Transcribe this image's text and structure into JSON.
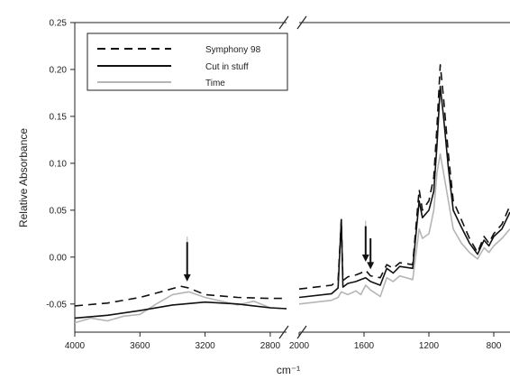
{
  "chart_data": {
    "type": "line",
    "title": "",
    "xlabel": "cm⁻¹",
    "ylabel": "Relative Absorbance",
    "y_range": [
      -0.08,
      0.25
    ],
    "y_ticks": [
      "-0.05",
      "0.00",
      "0.05",
      "0.10",
      "0.15",
      "0.20",
      "0.25"
    ],
    "x_axis_broken": true,
    "x_left_range": [
      4000,
      2700
    ],
    "x_right_range": [
      2000,
      700
    ],
    "x_ticks_left": [
      "4000",
      "3600",
      "3200",
      "2800"
    ],
    "x_ticks_right": [
      "2000",
      "1600",
      "1200",
      "800"
    ],
    "grid": false,
    "legend_position": "top-left",
    "annotations": [
      "↓",
      "↓",
      "↓"
    ],
    "series": [
      {
        "name": "Symphony 98",
        "style": "dashed",
        "color": "#111111",
        "left": [
          [
            4000,
            -0.052
          ],
          [
            3800,
            -0.049
          ],
          [
            3600,
            -0.043
          ],
          [
            3450,
            -0.036
          ],
          [
            3350,
            -0.031
          ],
          [
            3300,
            -0.033
          ],
          [
            3200,
            -0.04
          ],
          [
            3000,
            -0.043
          ],
          [
            2800,
            -0.044
          ],
          [
            2700,
            -0.044
          ]
        ],
        "right": [
          [
            2000,
            -0.034
          ],
          [
            1800,
            -0.03
          ],
          [
            1760,
            -0.025
          ],
          [
            1740,
            0.04
          ],
          [
            1730,
            -0.025
          ],
          [
            1700,
            -0.021
          ],
          [
            1650,
            -0.019
          ],
          [
            1620,
            -0.017
          ],
          [
            1590,
            -0.014
          ],
          [
            1560,
            -0.02
          ],
          [
            1500,
            -0.022
          ],
          [
            1460,
            -0.008
          ],
          [
            1420,
            -0.012
          ],
          [
            1380,
            -0.006
          ],
          [
            1300,
            -0.008
          ],
          [
            1260,
            0.072
          ],
          [
            1240,
            0.05
          ],
          [
            1200,
            0.06
          ],
          [
            1170,
            0.085
          ],
          [
            1150,
            0.14
          ],
          [
            1130,
            0.205
          ],
          [
            1110,
            0.17
          ],
          [
            1080,
            0.11
          ],
          [
            1050,
            0.06
          ],
          [
            1000,
            0.04
          ],
          [
            950,
            0.02
          ],
          [
            900,
            0.005
          ],
          [
            860,
            0.022
          ],
          [
            830,
            0.015
          ],
          [
            800,
            0.025
          ],
          [
            750,
            0.035
          ],
          [
            700,
            0.055
          ]
        ]
      },
      {
        "name": "Cut in stuff",
        "style": "solid",
        "color": "#111111",
        "left": [
          [
            4000,
            -0.065
          ],
          [
            3800,
            -0.062
          ],
          [
            3600,
            -0.057
          ],
          [
            3400,
            -0.051
          ],
          [
            3200,
            -0.048
          ],
          [
            3000,
            -0.05
          ],
          [
            2900,
            -0.052
          ],
          [
            2800,
            -0.054
          ],
          [
            2700,
            -0.055
          ]
        ],
        "right": [
          [
            2000,
            -0.043
          ],
          [
            1800,
            -0.039
          ],
          [
            1760,
            -0.033
          ],
          [
            1740,
            0.04
          ],
          [
            1730,
            -0.032
          ],
          [
            1700,
            -0.028
          ],
          [
            1650,
            -0.026
          ],
          [
            1620,
            -0.024
          ],
          [
            1590,
            -0.022
          ],
          [
            1560,
            -0.026
          ],
          [
            1500,
            -0.03
          ],
          [
            1460,
            -0.012
          ],
          [
            1420,
            -0.017
          ],
          [
            1380,
            -0.01
          ],
          [
            1300,
            -0.012
          ],
          [
            1260,
            0.06
          ],
          [
            1240,
            0.042
          ],
          [
            1200,
            0.05
          ],
          [
            1170,
            0.07
          ],
          [
            1150,
            0.12
          ],
          [
            1130,
            0.182
          ],
          [
            1110,
            0.15
          ],
          [
            1080,
            0.095
          ],
          [
            1050,
            0.05
          ],
          [
            1000,
            0.032
          ],
          [
            950,
            0.015
          ],
          [
            900,
            0.003
          ],
          [
            860,
            0.018
          ],
          [
            830,
            0.012
          ],
          [
            800,
            0.022
          ],
          [
            750,
            0.03
          ],
          [
            700,
            0.048
          ]
        ]
      },
      {
        "name": "Time",
        "style": "solid",
        "color": "#b5b5b5",
        "left": [
          [
            4000,
            -0.07
          ],
          [
            3900,
            -0.065
          ],
          [
            3800,
            -0.068
          ],
          [
            3700,
            -0.063
          ],
          [
            3600,
            -0.061
          ],
          [
            3500,
            -0.05
          ],
          [
            3400,
            -0.04
          ],
          [
            3300,
            -0.037
          ],
          [
            3200,
            -0.043
          ],
          [
            3100,
            -0.047
          ],
          [
            3000,
            -0.051
          ],
          [
            2900,
            -0.047
          ],
          [
            2800,
            -0.054
          ],
          [
            2700,
            -0.055
          ]
        ],
        "right": [
          [
            2000,
            -0.05
          ],
          [
            1800,
            -0.046
          ],
          [
            1760,
            -0.043
          ],
          [
            1740,
            -0.037
          ],
          [
            1700,
            -0.04
          ],
          [
            1650,
            -0.036
          ],
          [
            1620,
            -0.04
          ],
          [
            1590,
            -0.03
          ],
          [
            1560,
            -0.035
          ],
          [
            1500,
            -0.042
          ],
          [
            1460,
            -0.022
          ],
          [
            1420,
            -0.026
          ],
          [
            1380,
            -0.02
          ],
          [
            1300,
            -0.024
          ],
          [
            1260,
            0.03
          ],
          [
            1240,
            0.02
          ],
          [
            1200,
            0.025
          ],
          [
            1170,
            0.05
          ],
          [
            1150,
            0.09
          ],
          [
            1130,
            0.11
          ],
          [
            1110,
            0.09
          ],
          [
            1080,
            0.06
          ],
          [
            1050,
            0.03
          ],
          [
            1000,
            0.015
          ],
          [
            950,
            0.005
          ],
          [
            900,
            -0.002
          ],
          [
            860,
            0.01
          ],
          [
            830,
            0.005
          ],
          [
            800,
            0.012
          ],
          [
            750,
            0.02
          ],
          [
            700,
            0.03
          ]
        ]
      }
    ]
  }
}
